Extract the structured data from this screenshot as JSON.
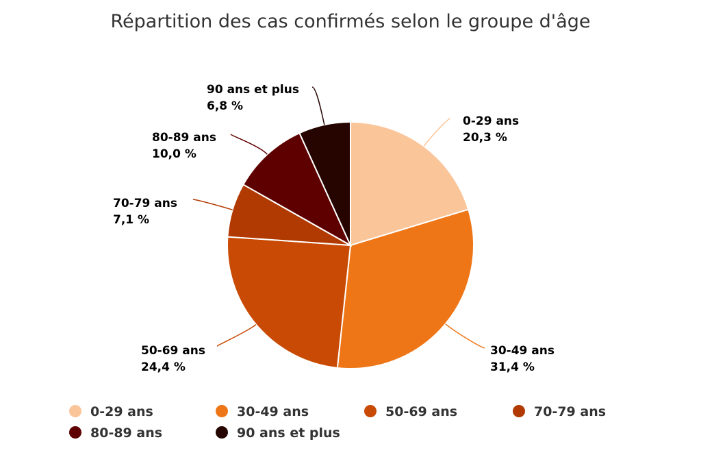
{
  "chart_data": {
    "type": "pie",
    "title": "Répartition des cas confirmés selon le groupe d'âge",
    "categories": [
      "0-29 ans",
      "30-49 ans",
      "50-69 ans",
      "70-79 ans",
      "80-89 ans",
      "90 ans et plus"
    ],
    "values": [
      20.3,
      31.4,
      24.4,
      7.1,
      10.0,
      6.8
    ],
    "value_labels": [
      "20,3 %",
      "31,4 %",
      "24,4 %",
      "7,1 %",
      "10,0 %",
      "6,8 %"
    ],
    "colors": [
      "#fbc59a",
      "#ee7617",
      "#c94a04",
      "#b03a01",
      "#5e0000",
      "#260500"
    ],
    "legend_position": "bottom"
  }
}
